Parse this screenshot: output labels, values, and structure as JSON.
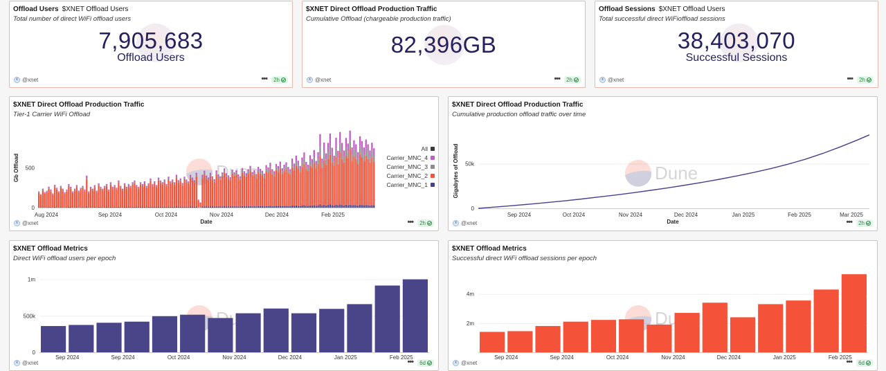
{
  "counters": [
    {
      "title": "Offload Users",
      "title2": "$XNET Offload Users",
      "subtitle": "Total number of direct WiFi offload users",
      "value": "7,905,683",
      "label": "Offload Users",
      "author": "@xnet",
      "badge": "2h"
    },
    {
      "title": "$XNET Direct Offload Production Traffic",
      "title2": "",
      "subtitle": "Cumulative Offload (chargeable production traffic)",
      "value": "82,396GB",
      "label": "",
      "author": "@xnet",
      "badge": "2h"
    },
    {
      "title": "Offload Sessions",
      "title2": "$XNET Offload Users",
      "subtitle": "Total successful direct WiFioffload sessions",
      "value": "38,403,070",
      "label": "Successful Sessions",
      "author": "@xnet",
      "badge": "2h"
    }
  ],
  "watermark": "Dune",
  "panels": [
    {
      "title": "$XNET Direct Offload Production Traffic",
      "subtitle": "Tier-1 Carrier WiFi Offload",
      "author": "@xnet",
      "badge": "2h"
    },
    {
      "title": "$XNET Direct Offload Production Traffic",
      "subtitle": "Cumulative production offload traffic over time",
      "author": "@xnet",
      "badge": "2h"
    },
    {
      "title": "$XNET Offload Metrics",
      "subtitle": "Direct WiFi offload users per epoch",
      "author": "@xnet",
      "badge": "6d"
    },
    {
      "title": "$XNET Offload Metrics",
      "subtitle": "Successful direct WiFi offload sessions per epoch",
      "author": "@xnet",
      "badge": "6d"
    }
  ],
  "chart_data": [
    {
      "type": "bar",
      "stacked": true,
      "title": "$XNET Direct Offload Production Traffic",
      "subtitle": "Tier-1 Carrier WiFi Offload",
      "xlabel": "Date",
      "ylabel": "Gb Offload",
      "ylim": [
        0,
        1000
      ],
      "yticks": [
        0,
        500
      ],
      "xticks": [
        "Aug 2024",
        "Sep 2024",
        "Oct 2024",
        "Nov 2024",
        "Dec 2024",
        "Feb 2025"
      ],
      "legend": [
        "All",
        "Carrier_MNC_4",
        "Carrier_MNC_3",
        "Carrier_MNC_2",
        "Carrier_MNC_1"
      ],
      "legend_position": "right",
      "colors": {
        "All": "#3a3a3a",
        "Carrier_MNC_4": "#c25cc4",
        "Carrier_MNC_3": "#8c8c8c",
        "Carrier_MNC_2": "#f4533a",
        "Carrier_MNC_1": "#4b3f8a"
      },
      "carrier_mnc_2": [
        180,
        150,
        210,
        170,
        190,
        230,
        200,
        160,
        250,
        220,
        180,
        240,
        210,
        170,
        200,
        260,
        230,
        180,
        210,
        250,
        190,
        220,
        240,
        200,
        340,
        180,
        230,
        210,
        250,
        190,
        270,
        230,
        210,
        240,
        260,
        200,
        280,
        230,
        250,
        220,
        300,
        240,
        210,
        270,
        230,
        260,
        240,
        280,
        300,
        250,
        230,
        280,
        260,
        290,
        240,
        270,
        320,
        260,
        290,
        250,
        330,
        300,
        280,
        310,
        260,
        340,
        290,
        310,
        280,
        360,
        300,
        320,
        270,
        340,
        310,
        290,
        360,
        330,
        300,
        380,
        90,
        60,
        360,
        400,
        350,
        330,
        380,
        340,
        310,
        400,
        360,
        340,
        380,
        420,
        370,
        350,
        330,
        410,
        380,
        400,
        360,
        340,
        420,
        390,
        370,
        410,
        440,
        380,
        400,
        360,
        430,
        410,
        390,
        360,
        440,
        420,
        460,
        400,
        380,
        450,
        430,
        470,
        410,
        440,
        460,
        420,
        400,
        480,
        450,
        500,
        470,
        430,
        490,
        520,
        460,
        440,
        500,
        480,
        530,
        470,
        520,
        600,
        480,
        560,
        510,
        580,
        620,
        540,
        500,
        600,
        520,
        660,
        580,
        540,
        620,
        590,
        700,
        560,
        610,
        580,
        520,
        640,
        600,
        560,
        620,
        580,
        540,
        600,
        550
      ],
      "carrier_mnc_4": [
        10,
        8,
        12,
        10,
        9,
        14,
        12,
        8,
        16,
        12,
        10,
        14,
        12,
        10,
        11,
        15,
        13,
        10,
        12,
        14,
        10,
        12,
        14,
        11,
        30,
        10,
        13,
        12,
        14,
        10,
        15,
        13,
        12,
        14,
        15,
        11,
        16,
        13,
        14,
        12,
        17,
        14,
        12,
        15,
        13,
        15,
        14,
        16,
        17,
        14,
        13,
        16,
        15,
        17,
        14,
        15,
        20,
        15,
        17,
        14,
        20,
        17,
        16,
        18,
        15,
        20,
        17,
        18,
        16,
        22,
        18,
        19,
        16,
        20,
        18,
        17,
        22,
        20,
        18,
        24,
        5,
        3,
        22,
        26,
        22,
        20,
        24,
        22,
        19,
        28,
        24,
        22,
        26,
        30,
        25,
        23,
        22,
        28,
        26,
        28,
        24,
        22,
        32,
        28,
        26,
        30,
        36,
        28,
        30,
        26,
        34,
        32,
        30,
        28,
        40,
        36,
        44,
        34,
        32,
        42,
        38,
        46,
        36,
        42,
        46,
        38,
        34,
        60,
        44,
        70,
        52,
        40,
        62,
        80,
        50,
        42,
        70,
        56,
        90,
        50,
        80,
        160,
        60,
        120,
        80,
        110,
        150,
        100,
        70,
        130,
        90,
        140,
        110,
        80,
        120,
        100,
        130,
        90,
        110,
        100,
        80,
        120,
        110,
        90,
        110,
        100,
        80,
        100,
        90
      ],
      "carrier_mnc_3": [
        8,
        6,
        10,
        8,
        7,
        11,
        9,
        6,
        12,
        10,
        8,
        11,
        9,
        7,
        9,
        12,
        10,
        8,
        9,
        11,
        8,
        10,
        11,
        9,
        20,
        8,
        10,
        9,
        11,
        8,
        12,
        10,
        9,
        11,
        12,
        9,
        13,
        10,
        11,
        10,
        14,
        11,
        9,
        12,
        10,
        12,
        11,
        13,
        14,
        11,
        10,
        13,
        12,
        14,
        11,
        12,
        16,
        12,
        14,
        11,
        16,
        14,
        13,
        15,
        12,
        17,
        14,
        15,
        13,
        18,
        15,
        16,
        13,
        17,
        15,
        14,
        18,
        16,
        15,
        20,
        4,
        2,
        18,
        22,
        18,
        16,
        20,
        18,
        16,
        24,
        20,
        18,
        22,
        26,
        22,
        20,
        18,
        24,
        22,
        24,
        20,
        18,
        28,
        24,
        22,
        26,
        30,
        24,
        26,
        22,
        30,
        28,
        26,
        24,
        34,
        30,
        38,
        30,
        28,
        36,
        34,
        40,
        30,
        36,
        40,
        34,
        30,
        50,
        38,
        56,
        44,
        34,
        52,
        64,
        42,
        36,
        60,
        48,
        72,
        44,
        66,
        120,
        50,
        100,
        64,
        90,
        120,
        80,
        56,
        110,
        74,
        110,
        90,
        70,
        100,
        84,
        100,
        76,
        92,
        84,
        70,
        100,
        92,
        76,
        92,
        84,
        70,
        84,
        76
      ],
      "carrier_mnc_1": [
        6,
        5,
        7,
        6,
        6,
        8,
        7,
        5,
        9,
        7,
        6,
        8,
        7,
        6,
        7,
        9,
        8,
        6,
        7,
        8,
        6,
        7,
        8,
        7,
        12,
        6,
        8,
        7,
        8,
        6,
        9,
        8,
        7,
        8,
        9,
        7,
        10,
        8,
        9,
        8,
        10,
        8,
        7,
        9,
        8,
        9,
        8,
        10,
        10,
        9,
        8,
        10,
        9,
        10,
        8,
        9,
        11,
        9,
        10,
        9,
        11,
        10,
        10,
        11,
        9,
        12,
        10,
        11,
        10,
        13,
        11,
        12,
        10,
        12,
        11,
        10,
        13,
        12,
        11,
        14,
        3,
        2,
        13,
        15,
        13,
        12,
        14,
        13,
        12,
        16,
        14,
        13,
        15,
        17,
        15,
        14,
        13,
        16,
        15,
        16,
        14,
        13,
        18,
        16,
        15,
        17,
        19,
        16,
        17,
        15,
        19,
        18,
        17,
        16,
        20,
        19,
        22,
        19,
        18,
        21,
        20,
        23,
        19,
        21,
        23,
        20,
        19,
        26,
        22,
        28,
        24,
        20,
        26,
        30,
        23,
        21,
        28,
        25,
        32,
        23,
        30,
        44,
        26,
        38,
        28,
        34,
        42,
        32,
        26,
        38,
        30,
        40,
        34,
        28,
        36,
        32,
        38,
        30,
        34,
        32,
        28,
        36,
        34,
        30,
        34,
        32,
        28,
        32,
        30
      ],
      "all": []
    },
    {
      "type": "line",
      "title": "$XNET Direct Offload Production Traffic",
      "subtitle": "Cumulative production offload traffic over time",
      "xlabel": "Date",
      "ylabel": "Gigabytes of Offload",
      "ylim": [
        0,
        90000
      ],
      "yticks": [
        0,
        50000
      ],
      "ytick_labels": [
        "0",
        "50k"
      ],
      "xticks": [
        "Sep 2024",
        "Oct 2024",
        "Nov 2024",
        "Dec 2024",
        "Jan 2025",
        "Feb 2025",
        "Mar 2025"
      ],
      "color": "#4b3f8a",
      "x": [
        0,
        10,
        20,
        30,
        40,
        50,
        60,
        70,
        80,
        90,
        100,
        110,
        120,
        130,
        140,
        150,
        160,
        170,
        180,
        190,
        200,
        210,
        220,
        227
      ],
      "y": [
        0,
        1500,
        3000,
        4700,
        6500,
        8400,
        10500,
        12700,
        15000,
        17500,
        20200,
        23000,
        26000,
        29200,
        32600,
        36300,
        40300,
        44700,
        49600,
        55200,
        61600,
        68800,
        76600,
        82396
      ]
    },
    {
      "type": "bar",
      "title": "$XNET Offload Metrics",
      "subtitle": "Direct WiFi offload users per epoch",
      "ylim": [
        0,
        1100000
      ],
      "yticks": [
        0,
        500000,
        1000000
      ],
      "ytick_labels": [
        "0",
        "500k",
        "1m"
      ],
      "xticks": [
        "Sep 2024",
        "Sep 2024",
        "Oct 2024",
        "Nov 2024",
        "Dec 2024",
        "Jan 2025",
        "Feb 2025"
      ],
      "color": "#4a4589",
      "values": [
        360000,
        375000,
        405000,
        420000,
        495000,
        515000,
        470000,
        535000,
        600000,
        535000,
        595000,
        660000,
        915000,
        1000000
      ]
    },
    {
      "type": "bar",
      "title": "$XNET Offload Metrics",
      "subtitle": "Successful direct WiFi offload sessions per epoch",
      "ylim": [
        0,
        5500000
      ],
      "yticks": [
        2000000,
        4000000
      ],
      "ytick_labels": [
        "2m",
        "4m"
      ],
      "xticks": [
        "Sep 2024",
        "Sep 2024",
        "Oct 2024",
        "Nov 2024",
        "Dec 2024",
        "Jan 2025",
        "Feb 2025"
      ],
      "color": "#f5523a",
      "values": [
        1400000,
        1450000,
        1800000,
        2100000,
        2220000,
        2260000,
        1900000,
        2700000,
        3400000,
        2400000,
        3300000,
        3550000,
        4300000,
        5350000
      ]
    }
  ]
}
